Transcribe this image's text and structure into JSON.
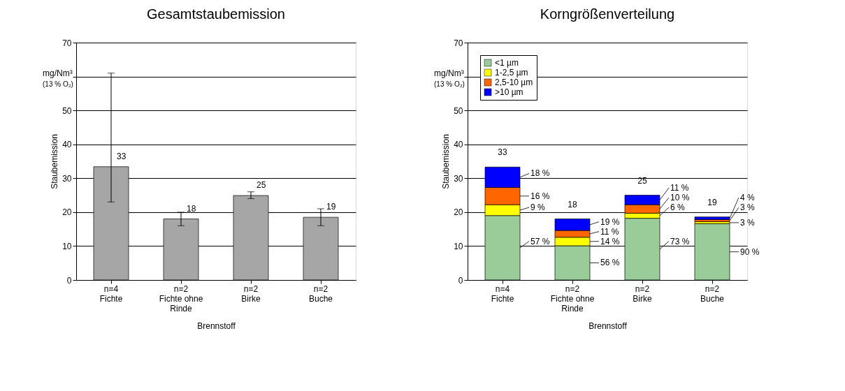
{
  "chart_data": [
    {
      "type": "bar",
      "title": "Gesamtstaubemission",
      "xlabel": "Brennstoff",
      "ylabel": "Staubemission",
      "categories": [
        "n=4\nFichte",
        "n=2\nFichte ohne\nRinde",
        "n=2\nBirke",
        "n=2\nBuche"
      ],
      "values": [
        33.4,
        18,
        24.9,
        18.5
      ],
      "color": "#a6a6a6",
      "errors": [
        [
          23,
          61
        ],
        [
          16,
          20
        ],
        [
          24,
          26
        ],
        [
          16,
          21
        ]
      ],
      "value_labels": [
        "33",
        "18",
        "25",
        "19"
      ],
      "ylim": [
        0,
        70
      ],
      "yticks": [
        0,
        10,
        20,
        30,
        40,
        50,
        {
          "value": 60,
          "label": null
        },
        70
      ],
      "grid": "y",
      "legend": false,
      "annotations": [
        "mg/Nm³",
        "(13 % O₂)"
      ]
    },
    {
      "type": "bar",
      "title": "Korngrößenverteilung",
      "xlabel": "Brennstoff",
      "ylabel": "Staubemission",
      "categories": [
        "n=4\nFichte",
        "n=2\nFichte ohne\nRinde",
        "n=2\nBirke",
        "n=2\nBuche"
      ],
      "stacked": true,
      "series": [
        {
          "name": "<1 µm",
          "color": "#99cc99",
          "values": [
            19,
            10.1,
            18.2,
            16.6
          ]
        },
        {
          "name": "1-2,5 µm",
          "color": "#ffff00",
          "values": [
            3.2,
            2.5,
            1.5,
            0.6
          ]
        },
        {
          "name": "2,5-10 µm",
          "color": "#ff6600",
          "values": [
            5.1,
            2.0,
            2.5,
            0.6
          ]
        },
        {
          "name": ">10 µm",
          "color": "#0000ff",
          "values": [
            6.0,
            3.4,
            2.8,
            0.8
          ]
        }
      ],
      "totals": [
        "33",
        "18",
        "25",
        "19"
      ],
      "ylim": [
        0,
        70
      ],
      "yticks": [
        0,
        10,
        20,
        30,
        40,
        50,
        {
          "value": 60,
          "label": null
        },
        70
      ],
      "grid": "y",
      "legend": "top left",
      "annotations": [
        "mg/Nm³",
        "(13 % O₂)",
        "57 %",
        "9 %",
        "16 %",
        "18 %",
        "56 %",
        "14 %",
        "11 %",
        "19 %",
        "73 %",
        "6 %",
        "10 %",
        "11 %",
        "90 %",
        "3 %",
        "3 %",
        "4 %"
      ]
    }
  ]
}
